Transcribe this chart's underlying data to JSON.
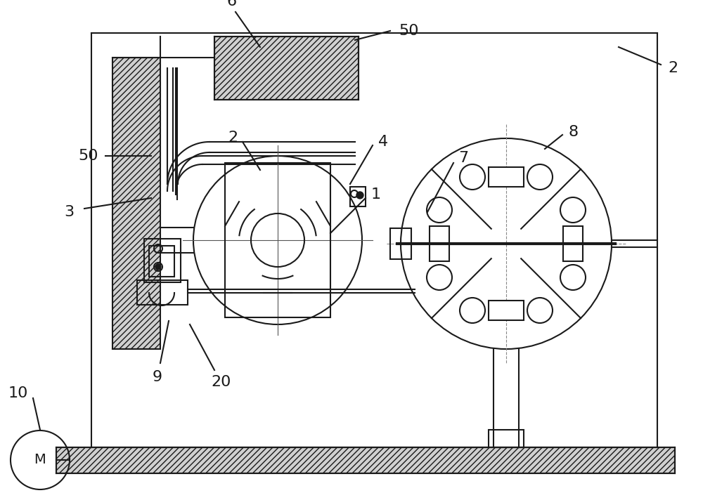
{
  "bg_color": "#ffffff",
  "lc": "#1a1a1a",
  "lw": 1.5,
  "fs": 16,
  "figsize": [
    10.0,
    7.12
  ],
  "dpi": 100
}
